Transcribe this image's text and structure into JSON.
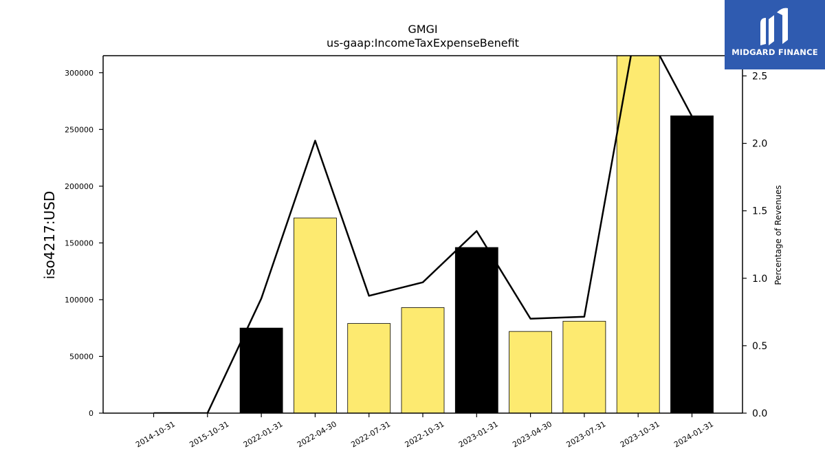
{
  "chart_data": {
    "type": "bar",
    "title": "GMGI",
    "subtitle": "us-gaap:IncomeTaxExpenseBenefit",
    "ylabel": "iso4217:USD",
    "y2label": "Percentage of Revenues",
    "categories": [
      "2014-10-31",
      "2015-10-31",
      "2022-01-31",
      "2022-04-30",
      "2022-07-31",
      "2022-10-31",
      "2023-01-31",
      "2023-04-30",
      "2023-07-31",
      "2023-10-31",
      "2024-01-31"
    ],
    "series": [
      {
        "kind": "bar",
        "axis": "left",
        "values": [
          0,
          0,
          75000,
          172000,
          79000,
          93000,
          146000,
          72000,
          81000,
          330000,
          262000
        ],
        "colors": [
          "#fdea70",
          "#fdea70",
          "#000000",
          "#fdea70",
          "#fdea70",
          "#fdea70",
          "#000000",
          "#fdea70",
          "#fdea70",
          "#fdea70",
          "#000000"
        ]
      },
      {
        "kind": "line",
        "axis": "right",
        "values": [
          0.0,
          0.0,
          0.85,
          2.02,
          0.87,
          0.97,
          1.35,
          0.7,
          0.715,
          2.95,
          2.2
        ]
      }
    ],
    "ylim": [
      0,
      315000
    ],
    "y2lim": [
      0,
      2.65
    ],
    "yticks": [
      0,
      50000,
      100000,
      150000,
      200000,
      250000,
      300000
    ],
    "y2ticks": [
      "0.0",
      "0.5",
      "1.0",
      "1.5",
      "2.0",
      "2.5"
    ],
    "grid": false
  },
  "logo": {
    "text": "MIDGARD FINANCE",
    "accent": "#2f5bb0"
  }
}
